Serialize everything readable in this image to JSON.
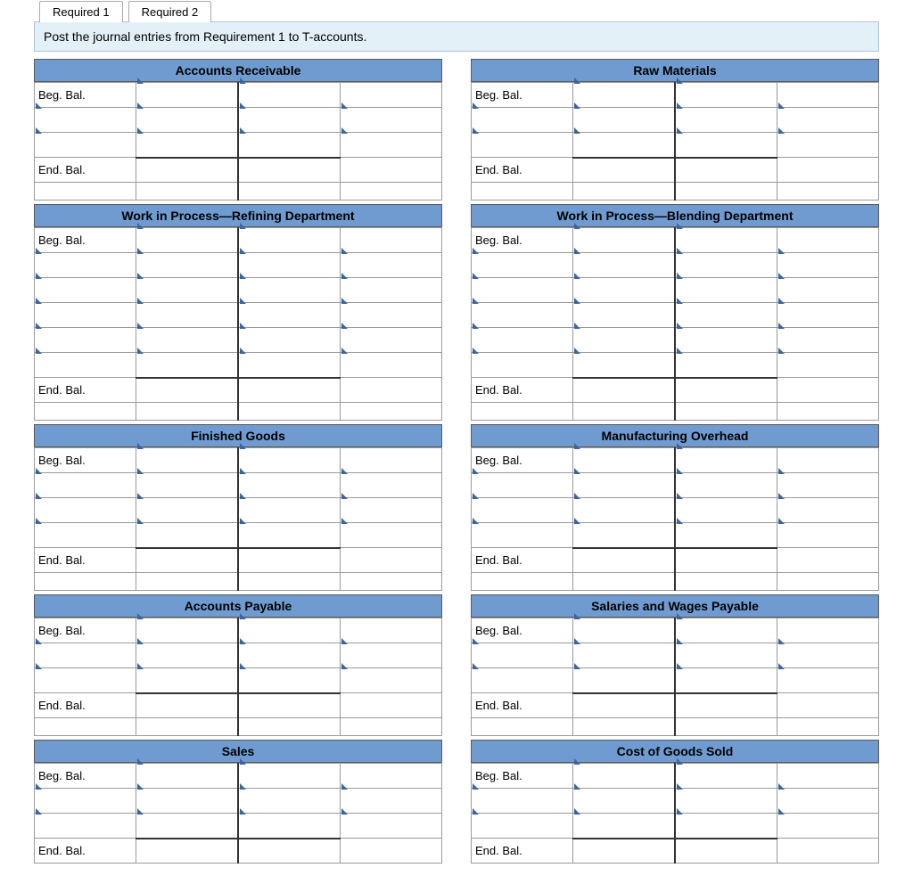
{
  "tabs": {
    "tab1": "Required 1",
    "tab2": "Required 2"
  },
  "instruction": "Post the journal entries from Requirement 1  to T-accounts.",
  "labels": {
    "beg": "Beg. Bal.",
    "end": "End. Bal."
  },
  "colors": {
    "header_bg": "#6f9bd1",
    "instruction_bg": "#e3f0f7",
    "marker": "#3a66a0",
    "border": "#9a9a9a"
  },
  "accounts": [
    {
      "left": {
        "title": "Accounts Receivable",
        "body_rows": 2
      },
      "right": {
        "title": "Raw Materials",
        "body_rows": 2
      }
    },
    {
      "left": {
        "title": "Work in Process—Refining Department",
        "body_rows": 5
      },
      "right": {
        "title": "Work in Process—Blending Department",
        "body_rows": 5
      }
    },
    {
      "left": {
        "title": "Finished Goods",
        "body_rows": 3
      },
      "right": {
        "title": "Manufacturing Overhead",
        "body_rows": 3
      }
    },
    {
      "left": {
        "title": "Accounts Payable",
        "body_rows": 2
      },
      "right": {
        "title": "Salaries and Wages Payable",
        "body_rows": 2
      }
    },
    {
      "left": {
        "title": "Sales",
        "body_rows": 2
      },
      "right": {
        "title": "Cost of Goods Sold",
        "body_rows": 2
      }
    }
  ]
}
